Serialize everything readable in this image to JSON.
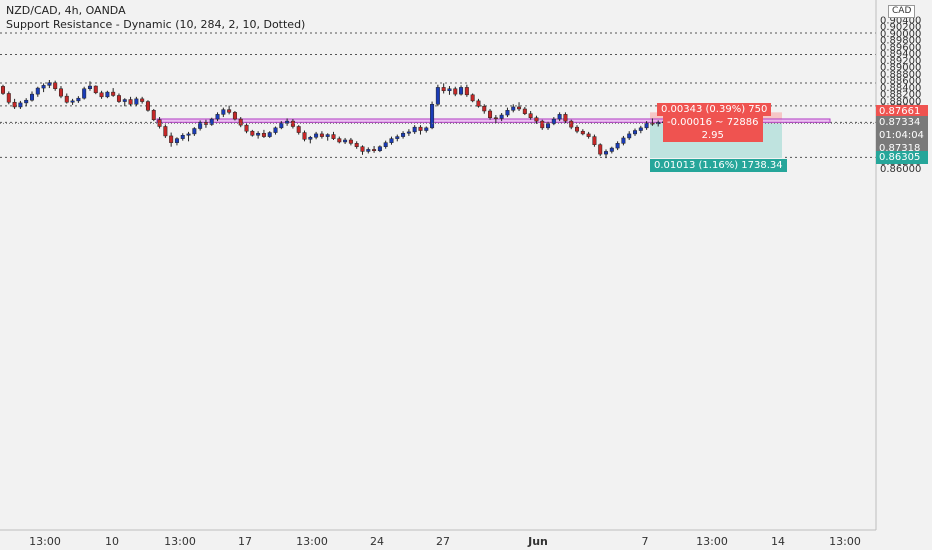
{
  "legend": {
    "symbol_line": "NZD/CAD, 4h, OANDA",
    "indicator_line": "Support Resistance - Dynamic (10, 284, 2, 10, Dotted)"
  },
  "currency_badge": "CAD",
  "position_tool": {
    "stop_label": "0.00343 (0.39%) 750",
    "entry_label": "-0.00016 ~ 72886",
    "ratio_label": "2.95",
    "target_label": "0.01013 (1.16%) 1738.34",
    "entry_price": 0.87334,
    "stop_price": 0.87661,
    "target_price": 0.86305
  },
  "axis_tags": {
    "stop": "0.87661",
    "current": "0.87334",
    "countdown": "01:04:04",
    "low": "0.87318",
    "target": "0.86305"
  },
  "colors": {
    "up": "#1a3cb8",
    "down": "#c62828",
    "zone_fill": "#e8b3f0",
    "zone_border": "#b13fc4",
    "stop_fill": "#f6c6c6",
    "target_fill": "#bfe3df",
    "red_tag": "#ef5350",
    "teal_tag": "#26a69a",
    "grid_dots": "#555555",
    "background": "#f2f2f2"
  },
  "chart_data": {
    "type": "candlestick",
    "symbol": "NZD/CAD",
    "interval": "4h",
    "source": "OANDA",
    "y_ticks": [
      "0.90400",
      "0.90200",
      "0.90000",
      "0.89800",
      "0.89600",
      "0.89400",
      "0.89200",
      "0.89000",
      "0.88800",
      "0.88600",
      "0.88400",
      "0.88200",
      "0.88000",
      "0.87800",
      "0.87600",
      "0.87400",
      "0.87200",
      "0.87000",
      "0.86800",
      "0.86600",
      "0.86400",
      "0.86200",
      "0.86000"
    ],
    "ylim": [
      0.8594,
      0.9043
    ],
    "x_ticks": [
      "13:00",
      "10",
      "13:00",
      "17",
      "13:00",
      "24",
      "27",
      "Jun",
      "7",
      "13:00",
      "14",
      "13:00"
    ],
    "support_resistance_levels": [
      0.90016,
      0.89375,
      0.88531,
      0.87852,
      0.87362,
      0.86325
    ],
    "zone": [
      0.87363,
      0.87463
    ],
    "candles": [
      [
        0.8843,
        0.8848,
        0.8818,
        0.8822
      ],
      [
        0.8822,
        0.8828,
        0.879,
        0.8796
      ],
      [
        0.8796,
        0.8806,
        0.8776,
        0.8782
      ],
      [
        0.8782,
        0.88,
        0.8776,
        0.8794
      ],
      [
        0.8794,
        0.8808,
        0.8784,
        0.8802
      ],
      [
        0.8802,
        0.8828,
        0.8798,
        0.882
      ],
      [
        0.882,
        0.8842,
        0.8812,
        0.8838
      ],
      [
        0.8838,
        0.8852,
        0.8826,
        0.8846
      ],
      [
        0.8846,
        0.8862,
        0.8838,
        0.8854
      ],
      [
        0.8854,
        0.886,
        0.883,
        0.8836
      ],
      [
        0.8836,
        0.8844,
        0.8808,
        0.8814
      ],
      [
        0.8814,
        0.8822,
        0.8792,
        0.8796
      ],
      [
        0.8796,
        0.8806,
        0.8788,
        0.88
      ],
      [
        0.88,
        0.8814,
        0.8794,
        0.8808
      ],
      [
        0.8808,
        0.8842,
        0.8804,
        0.8836
      ],
      [
        0.8836,
        0.8858,
        0.883,
        0.8844
      ],
      [
        0.8844,
        0.8846,
        0.882,
        0.8824
      ],
      [
        0.8824,
        0.883,
        0.8806,
        0.8812
      ],
      [
        0.8812,
        0.883,
        0.8808,
        0.8826
      ],
      [
        0.8826,
        0.8838,
        0.8812,
        0.8816
      ],
      [
        0.8816,
        0.8822,
        0.8794,
        0.8798
      ],
      [
        0.8798,
        0.8808,
        0.8784,
        0.8804
      ],
      [
        0.8804,
        0.8812,
        0.8786,
        0.879
      ],
      [
        0.879,
        0.8812,
        0.8786,
        0.8806
      ],
      [
        0.8806,
        0.8812,
        0.8792,
        0.8798
      ],
      [
        0.8798,
        0.8802,
        0.8768,
        0.8772
      ],
      [
        0.8772,
        0.8776,
        0.874,
        0.8744
      ],
      [
        0.8744,
        0.8752,
        0.8718,
        0.8724
      ],
      [
        0.8724,
        0.873,
        0.869,
        0.8696
      ],
      [
        0.8696,
        0.8706,
        0.8664,
        0.8676
      ],
      [
        0.8676,
        0.8692,
        0.8668,
        0.8688
      ],
      [
        0.8688,
        0.8704,
        0.8682,
        0.8698
      ],
      [
        0.8698,
        0.8708,
        0.868,
        0.8702
      ],
      [
        0.8702,
        0.8722,
        0.8696,
        0.8718
      ],
      [
        0.8718,
        0.8742,
        0.8712,
        0.8736
      ],
      [
        0.8736,
        0.8744,
        0.872,
        0.873
      ],
      [
        0.873,
        0.875,
        0.8726,
        0.8746
      ],
      [
        0.8746,
        0.8766,
        0.874,
        0.876
      ],
      [
        0.876,
        0.878,
        0.8752,
        0.8774
      ],
      [
        0.8774,
        0.8786,
        0.876,
        0.8766
      ],
      [
        0.8766,
        0.877,
        0.8742,
        0.8746
      ],
      [
        0.8746,
        0.8752,
        0.8722,
        0.8728
      ],
      [
        0.8728,
        0.8734,
        0.8704,
        0.871
      ],
      [
        0.871,
        0.8714,
        0.8694,
        0.8698
      ],
      [
        0.8698,
        0.871,
        0.8688,
        0.8704
      ],
      [
        0.8704,
        0.8714,
        0.869,
        0.8694
      ],
      [
        0.8694,
        0.871,
        0.869,
        0.8706
      ],
      [
        0.8706,
        0.8724,
        0.87,
        0.872
      ],
      [
        0.872,
        0.874,
        0.8716,
        0.8734
      ],
      [
        0.8734,
        0.8748,
        0.8726,
        0.874
      ],
      [
        0.874,
        0.8746,
        0.8718,
        0.8724
      ],
      [
        0.8724,
        0.8728,
        0.87,
        0.8706
      ],
      [
        0.8706,
        0.8712,
        0.868,
        0.8686
      ],
      [
        0.8686,
        0.8696,
        0.8674,
        0.8692
      ],
      [
        0.8692,
        0.8708,
        0.8686,
        0.8702
      ],
      [
        0.8702,
        0.871,
        0.8688,
        0.8694
      ],
      [
        0.8694,
        0.8704,
        0.8682,
        0.87
      ],
      [
        0.87,
        0.8708,
        0.8684,
        0.8688
      ],
      [
        0.8688,
        0.8694,
        0.8674,
        0.8678
      ],
      [
        0.8678,
        0.869,
        0.8672,
        0.8684
      ],
      [
        0.8684,
        0.869,
        0.8668,
        0.8674
      ],
      [
        0.8674,
        0.868,
        0.8658,
        0.8664
      ],
      [
        0.8664,
        0.8668,
        0.864,
        0.865
      ],
      [
        0.865,
        0.8662,
        0.8644,
        0.8656
      ],
      [
        0.8656,
        0.8666,
        0.8646,
        0.8652
      ],
      [
        0.8652,
        0.8668,
        0.8648,
        0.8664
      ],
      [
        0.8664,
        0.8682,
        0.8658,
        0.8676
      ],
      [
        0.8676,
        0.8694,
        0.867,
        0.8688
      ],
      [
        0.8688,
        0.87,
        0.868,
        0.8694
      ],
      [
        0.8694,
        0.871,
        0.8688,
        0.8704
      ],
      [
        0.8704,
        0.8716,
        0.8696,
        0.8708
      ],
      [
        0.8708,
        0.8728,
        0.8702,
        0.8722
      ],
      [
        0.8722,
        0.8728,
        0.87,
        0.8712
      ],
      [
        0.8712,
        0.8724,
        0.8706,
        0.872
      ],
      [
        0.872,
        0.8798,
        0.8716,
        0.879
      ],
      [
        0.879,
        0.8848,
        0.8784,
        0.884
      ],
      [
        0.884,
        0.8852,
        0.8822,
        0.883
      ],
      [
        0.883,
        0.8844,
        0.8818,
        0.8836
      ],
      [
        0.8836,
        0.8842,
        0.8814,
        0.882
      ],
      [
        0.882,
        0.8846,
        0.8816,
        0.884
      ],
      [
        0.884,
        0.8848,
        0.8812,
        0.8818
      ],
      [
        0.8818,
        0.8822,
        0.8796,
        0.88
      ],
      [
        0.88,
        0.8806,
        0.878,
        0.8784
      ],
      [
        0.8784,
        0.879,
        0.8762,
        0.877
      ],
      [
        0.877,
        0.8776,
        0.8744,
        0.875
      ],
      [
        0.875,
        0.8758,
        0.8734,
        0.8748
      ],
      [
        0.8748,
        0.8764,
        0.874,
        0.8758
      ],
      [
        0.8758,
        0.878,
        0.8752,
        0.8772
      ],
      [
        0.8772,
        0.879,
        0.8766,
        0.8782
      ],
      [
        0.8782,
        0.8796,
        0.877,
        0.8776
      ],
      [
        0.8776,
        0.8782,
        0.8758,
        0.8762
      ],
      [
        0.8762,
        0.877,
        0.8744,
        0.875
      ],
      [
        0.875,
        0.8756,
        0.8732,
        0.874
      ],
      [
        0.874,
        0.8744,
        0.8714,
        0.872
      ],
      [
        0.872,
        0.8738,
        0.8714,
        0.8732
      ],
      [
        0.8732,
        0.8752,
        0.8728,
        0.8746
      ],
      [
        0.8746,
        0.8766,
        0.874,
        0.876
      ],
      [
        0.876,
        0.8766,
        0.8734,
        0.874
      ],
      [
        0.874,
        0.8744,
        0.8716,
        0.8722
      ],
      [
        0.8722,
        0.8728,
        0.8704,
        0.871
      ],
      [
        0.871,
        0.8716,
        0.8698,
        0.8702
      ],
      [
        0.8702,
        0.8708,
        0.8688,
        0.8694
      ],
      [
        0.8694,
        0.87,
        0.8664,
        0.867
      ],
      [
        0.867,
        0.8674,
        0.8636,
        0.8642
      ],
      [
        0.8642,
        0.8656,
        0.863,
        0.865
      ],
      [
        0.865,
        0.8664,
        0.8644,
        0.866
      ],
      [
        0.866,
        0.868,
        0.8654,
        0.8674
      ],
      [
        0.8674,
        0.8696,
        0.8668,
        0.869
      ],
      [
        0.869,
        0.871,
        0.8684,
        0.8702
      ],
      [
        0.8702,
        0.8718,
        0.8696,
        0.8712
      ],
      [
        0.8712,
        0.8726,
        0.8704,
        0.872
      ],
      [
        0.872,
        0.874,
        0.8714,
        0.8734
      ],
      [
        0.8734,
        0.8748,
        0.8726,
        0.8732
      ],
      [
        0.8732,
        0.8742,
        0.8724,
        0.8736
      ],
      [
        0.8736,
        0.8744,
        0.873,
        0.8738
      ]
    ]
  }
}
